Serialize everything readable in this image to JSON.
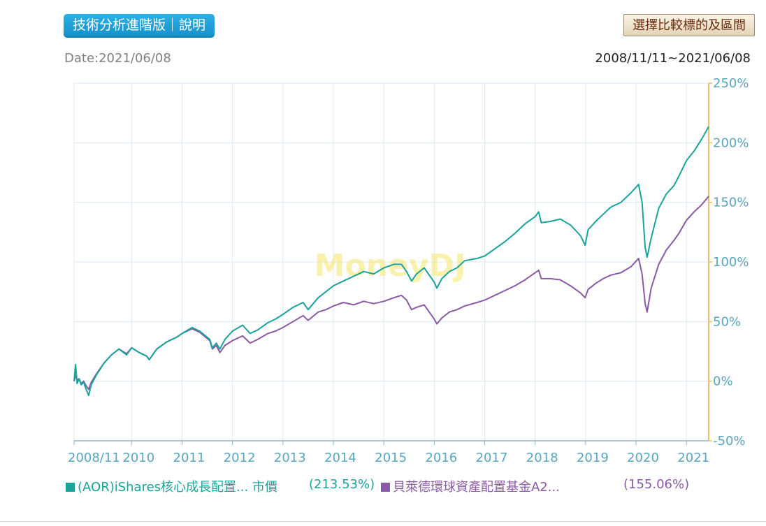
{
  "header": {
    "tech_button_label": "技術分析進階版｜說明",
    "compare_button_label": "選擇比較標的及區間",
    "date_text": "Date:2021/06/08",
    "range_text": "2008/11/11~2021/06/08"
  },
  "watermark": "MoneyDJ",
  "colors": {
    "series1": "#1aa39a",
    "series2": "#8a5aa5",
    "axis_right": "#e8c26a",
    "tick": "#5aa6c0",
    "grid": "#dceaf1"
  },
  "legend": {
    "s1_name": "(AOR)iShares核心成長配置... 市價",
    "s1_value": "(213.53%)",
    "s2_name": "貝萊德環球資產配置基金A2...",
    "s2_value": "(155.06%)"
  },
  "chart_data": {
    "type": "line",
    "ylim": [
      -50,
      250
    ],
    "xlim": [
      2008.86,
      2021.44
    ],
    "yticks": [
      "250%",
      "200%",
      "150%",
      "100%",
      "50%",
      "0%",
      "-50%"
    ],
    "ytick_values": [
      250,
      200,
      150,
      100,
      50,
      0,
      -50
    ],
    "xticks": [
      "2008/11",
      "2010",
      "2011",
      "2012",
      "2013",
      "2014",
      "2015",
      "2016",
      "2017",
      "2018",
      "2019",
      "2020",
      "2021"
    ],
    "xtick_values": [
      2008.86,
      2010,
      2011,
      2012,
      2013,
      2014,
      2015,
      2016,
      2017,
      2018,
      2019,
      2020,
      2021
    ],
    "series": [
      {
        "name": "(AOR)iShares核心成長配置... 市價",
        "x": [
          2008.86,
          2008.89,
          2008.92,
          2008.96,
          2009.0,
          2009.05,
          2009.1,
          2009.15,
          2009.2,
          2009.3,
          2009.45,
          2009.6,
          2009.75,
          2009.9,
          2010.0,
          2010.15,
          2010.3,
          2010.35,
          2010.5,
          2010.7,
          2010.9,
          2011.0,
          2011.2,
          2011.35,
          2011.55,
          2011.6,
          2011.68,
          2011.75,
          2011.85,
          2012.0,
          2012.2,
          2012.35,
          2012.5,
          2012.7,
          2012.85,
          2013.0,
          2013.2,
          2013.4,
          2013.5,
          2013.7,
          2013.85,
          2014.0,
          2014.2,
          2014.4,
          2014.6,
          2014.8,
          2015.0,
          2015.2,
          2015.35,
          2015.45,
          2015.55,
          2015.65,
          2015.8,
          2016.0,
          2016.05,
          2016.15,
          2016.3,
          2016.45,
          2016.6,
          2016.85,
          2017.0,
          2017.2,
          2017.4,
          2017.6,
          2017.8,
          2018.0,
          2018.07,
          2018.12,
          2018.3,
          2018.5,
          2018.7,
          2018.9,
          2018.99,
          2019.05,
          2019.2,
          2019.35,
          2019.5,
          2019.7,
          2019.9,
          2020.05,
          2020.12,
          2020.18,
          2020.22,
          2020.3,
          2020.45,
          2020.6,
          2020.75,
          2020.85,
          2021.0,
          2021.15,
          2021.3,
          2021.44
        ],
        "values": [
          0,
          14,
          -2,
          2,
          -3,
          -1,
          -7,
          -12,
          -3,
          5,
          15,
          22,
          27,
          22,
          28,
          24,
          21,
          18,
          27,
          33,
          37,
          40,
          45,
          42,
          35,
          28,
          32,
          27,
          35,
          42,
          47,
          40,
          43,
          49,
          52,
          56,
          62,
          66,
          60,
          70,
          75,
          80,
          84,
          88,
          92,
          90,
          95,
          98,
          98,
          92,
          84,
          90,
          95,
          83,
          78,
          86,
          92,
          95,
          101,
          103,
          105,
          111,
          117,
          124,
          132,
          138,
          142,
          133,
          134,
          136,
          131,
          122,
          114,
          127,
          134,
          140,
          146,
          150,
          158,
          165,
          150,
          112,
          104,
          120,
          145,
          157,
          164,
          172,
          185,
          193,
          203,
          213.53
        ]
      },
      {
        "name": "貝萊德環球資產配置基金A2...",
        "x": [
          2008.86,
          2008.89,
          2008.92,
          2008.96,
          2009.0,
          2009.05,
          2009.1,
          2009.15,
          2009.2,
          2009.3,
          2009.45,
          2009.6,
          2009.75,
          2009.9,
          2010.0,
          2010.15,
          2010.3,
          2010.35,
          2010.5,
          2010.7,
          2010.9,
          2011.0,
          2011.2,
          2011.35,
          2011.55,
          2011.6,
          2011.68,
          2011.75,
          2011.85,
          2012.0,
          2012.2,
          2012.35,
          2012.5,
          2012.7,
          2012.85,
          2013.0,
          2013.2,
          2013.4,
          2013.5,
          2013.7,
          2013.85,
          2014.0,
          2014.2,
          2014.4,
          2014.6,
          2014.8,
          2015.0,
          2015.2,
          2015.35,
          2015.45,
          2015.55,
          2015.65,
          2015.8,
          2016.0,
          2016.05,
          2016.15,
          2016.3,
          2016.45,
          2016.6,
          2016.85,
          2017.0,
          2017.2,
          2017.4,
          2017.6,
          2017.8,
          2018.0,
          2018.07,
          2018.12,
          2018.3,
          2018.5,
          2018.7,
          2018.9,
          2018.99,
          2019.05,
          2019.2,
          2019.35,
          2019.5,
          2019.7,
          2019.9,
          2020.05,
          2020.12,
          2020.18,
          2020.22,
          2020.3,
          2020.45,
          2020.6,
          2020.75,
          2020.85,
          2021.0,
          2021.15,
          2021.3,
          2021.44
        ],
        "values": [
          0,
          5,
          1,
          2,
          -2,
          0,
          -4,
          -7,
          -1,
          6,
          15,
          22,
          27,
          23,
          28,
          24,
          21,
          18,
          27,
          33,
          37,
          40,
          44,
          41,
          34,
          27,
          30,
          24,
          30,
          34,
          38,
          32,
          35,
          40,
          42,
          45,
          50,
          55,
          51,
          58,
          60,
          63,
          66,
          64,
          67,
          65,
          67,
          70,
          72,
          68,
          60,
          62,
          64,
          52,
          48,
          53,
          58,
          60,
          63,
          66,
          68,
          72,
          76,
          80,
          85,
          91,
          93,
          86,
          86,
          85,
          80,
          74,
          70,
          77,
          82,
          86,
          89,
          91,
          96,
          103,
          90,
          65,
          58,
          78,
          98,
          110,
          118,
          124,
          135,
          142,
          148,
          155.06
        ]
      }
    ]
  }
}
